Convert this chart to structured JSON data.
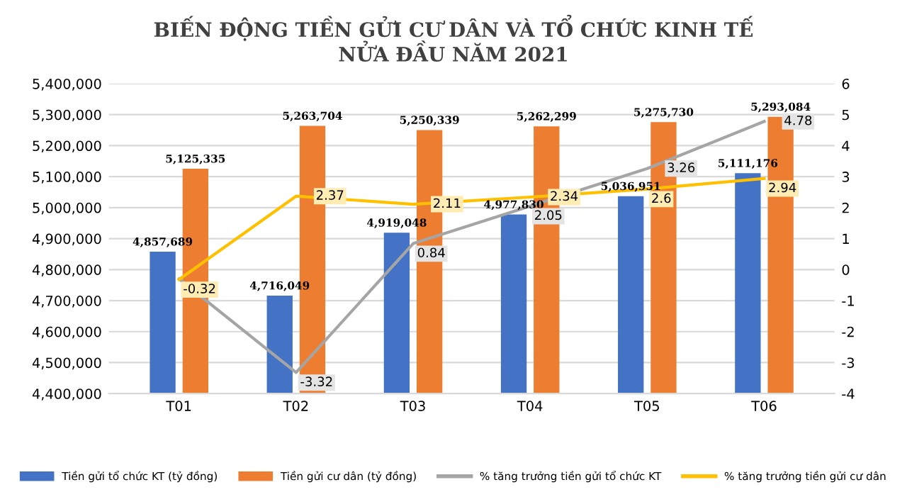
{
  "chart_data": {
    "type": "bar",
    "title": "BIẾN ĐỘNG TIỀN GỬI CƯ DÂN VÀ TỔ CHỨC KINH TẾ\nNỬA ĐẦU NĂM 2021",
    "categories": [
      "T01",
      "T02",
      "T03",
      "T04",
      "T05",
      "T06"
    ],
    "series": [
      {
        "name": "Tiền gửi tổ chức KT (tỷ đồng)",
        "color": "#4472c4",
        "values": [
          4857689,
          4716049,
          4919048,
          4977830,
          5036951,
          5111176
        ],
        "value_labels": [
          "4,857,689",
          "4,716,049",
          "4,919,048",
          "4,977,830",
          "5,036,951",
          "5,111,176"
        ]
      },
      {
        "name": "Tiền gửi cư dân (tỷ đồng)",
        "color": "#ed7d31",
        "values": [
          5125335,
          5263704,
          5250339,
          5262299,
          5275730,
          5293084
        ],
        "value_labels": [
          "5,125,335",
          "5,263,704",
          "5,250,339",
          "5,262,299",
          "5,275,730",
          "5,293,084"
        ]
      },
      {
        "name": "% tăng trưởng tiền gửi tổ chức KT",
        "type": "line",
        "axis": "y2",
        "color": "#a5a5a5",
        "values": [
          -0.3,
          -3.32,
          0.84,
          2.05,
          3.26,
          4.78
        ],
        "value_labels": [
          null,
          "-3.32",
          "0.84",
          "2.05",
          "3.26",
          "4.78"
        ]
      },
      {
        "name": "% tăng trưởng tiền gửi cư dân",
        "type": "line",
        "axis": "y2",
        "color": "#ffc000",
        "values": [
          -0.32,
          2.37,
          2.11,
          2.34,
          2.6,
          2.94
        ],
        "value_labels": [
          "-0.32",
          "2.37",
          "2.11",
          "2.34",
          "2.6",
          "2.94"
        ]
      }
    ],
    "ylim": [
      4400000,
      5400000
    ],
    "yticks": [
      {
        "value": 4400000,
        "label": "4,400,000"
      },
      {
        "value": 4500000,
        "label": "4,500,000"
      },
      {
        "value": 4600000,
        "label": "4,600,000"
      },
      {
        "value": 4700000,
        "label": "4,700,000"
      },
      {
        "value": 4800000,
        "label": "4,800,000"
      },
      {
        "value": 4900000,
        "label": "4,900,000"
      },
      {
        "value": 5000000,
        "label": "5,000,000"
      },
      {
        "value": 5100000,
        "label": "5,100,000"
      },
      {
        "value": 5200000,
        "label": "5,200,000"
      },
      {
        "value": 5300000,
        "label": "5,300,000"
      },
      {
        "value": 5400000,
        "label": "5,400,000"
      }
    ],
    "y2lim": [
      -4,
      6
    ],
    "y2ticks": [
      -4,
      -3,
      -2,
      -1,
      0,
      1,
      2,
      3,
      4,
      5,
      6
    ],
    "grid": "y",
    "legend": "bottom"
  }
}
